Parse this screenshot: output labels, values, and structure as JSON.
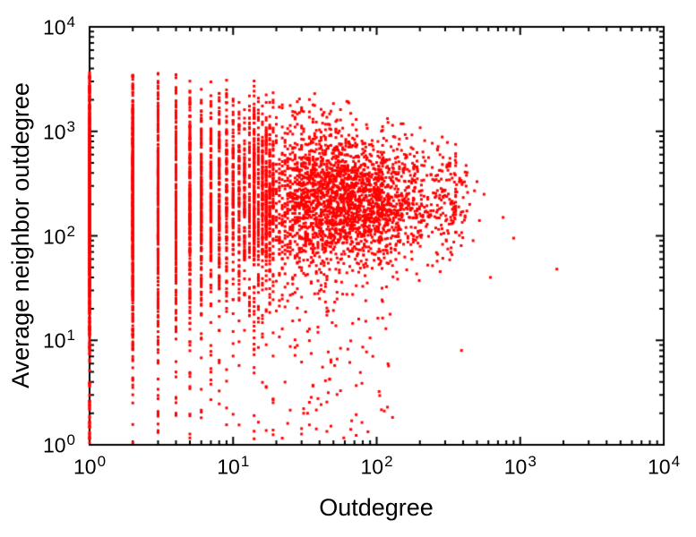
{
  "figure": {
    "background": "#ffffff",
    "axis_color": "#000000",
    "point_color": "#ff0000"
  },
  "chart_data": {
    "type": "scatter",
    "title": "",
    "xlabel": "Outdegree",
    "ylabel": "Average neighbor outdegree",
    "x_scale": "log",
    "y_scale": "log",
    "xlim": [
      1,
      10000
    ],
    "ylim": [
      1,
      10000
    ],
    "x_tick_exponents": [
      0,
      1,
      2,
      3,
      4
    ],
    "y_tick_exponents": [
      0,
      1,
      2,
      3,
      4
    ],
    "minor_ticks": true,
    "grid": false,
    "legend": "none",
    "marker": "square-dot",
    "marker_size_px": 3,
    "scatter_model": {
      "seed": 1234,
      "n_points": 6500,
      "stripe_frac": 0.55,
      "stripe_k_max": 19,
      "stripe_weight_exp": 0.95,
      "cloud_frac": 0.435,
      "cloud_log_mean": 1.72,
      "cloud_log_sigma": 0.34,
      "cloud_log_min": 1.15,
      "cloud_log_max": 2.55,
      "tail_log_min": 2.4,
      "tail_log_max": 2.63,
      "y_log_mean": 2.35,
      "y_log_sigma_base": 0.3,
      "y_log_sigma_extra": 0.34,
      "y_sigma_decay": 28,
      "y_log_cap_base": 3.56,
      "y_log_cap_slope": 0.28,
      "low_band_prob": 0.05,
      "low_band_max_x": 130,
      "low_band_log_min": 0.02,
      "low_band_log_max": 1.6,
      "outliers": [
        [
          430,
          260
        ],
        [
          445,
          200
        ],
        [
          470,
          90
        ],
        [
          480,
          270
        ],
        [
          500,
          330
        ],
        [
          520,
          140
        ],
        [
          390,
          8
        ],
        [
          560,
          250
        ],
        [
          620,
          40
        ],
        [
          760,
          150
        ],
        [
          900,
          95
        ],
        [
          1800,
          48
        ]
      ]
    }
  }
}
